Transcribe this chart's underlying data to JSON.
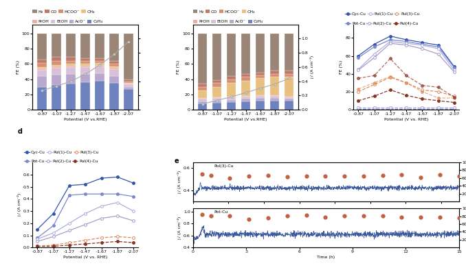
{
  "potentials": [
    -0.87,
    -1.07,
    -1.27,
    -1.47,
    -1.67,
    -1.87,
    -2.07
  ],
  "panel_a": {
    "C2H4": [
      30,
      32,
      34,
      36,
      38,
      35,
      27
    ],
    "AcO": [
      14,
      14,
      13,
      11,
      10,
      9,
      3
    ],
    "EtOH": [
      8,
      9,
      9,
      9,
      9,
      9,
      3
    ],
    "PrOH": [
      2,
      2,
      2,
      2,
      2,
      2,
      1
    ],
    "CH4": [
      2,
      2,
      2,
      2,
      2,
      2,
      1
    ],
    "HCOO": [
      5,
      5,
      4,
      4,
      3,
      3,
      2
    ],
    "CO": [
      5,
      5,
      5,
      4,
      4,
      4,
      3
    ],
    "H2": [
      34,
      31,
      31,
      32,
      32,
      36,
      60
    ],
    "current": [
      0.27,
      0.33,
      0.4,
      0.5,
      0.63,
      0.78,
      0.96
    ]
  },
  "panel_b": {
    "C2H4": [
      8,
      9,
      10,
      11,
      12,
      12,
      12
    ],
    "AcO": [
      3,
      3,
      3,
      3,
      3,
      3,
      2
    ],
    "EtOH": [
      3,
      3,
      3,
      3,
      3,
      3,
      2
    ],
    "PrOH": [
      1,
      1,
      1,
      1,
      1,
      1,
      1
    ],
    "CH4": [
      10,
      14,
      18,
      20,
      22,
      24,
      26
    ],
    "HCOO": [
      5,
      5,
      5,
      5,
      4,
      4,
      4
    ],
    "CO": [
      4,
      4,
      4,
      4,
      4,
      4,
      4
    ],
    "H2": [
      66,
      61,
      56,
      53,
      51,
      49,
      49
    ],
    "current": [
      0.08,
      0.13,
      0.18,
      0.24,
      0.3,
      0.36,
      0.44
    ]
  },
  "panel_c": {
    "CycCu_C2": [
      60,
      73,
      82,
      78,
      75,
      72,
      48
    ],
    "PotCu_C2": [
      58,
      70,
      78,
      76,
      73,
      70,
      47
    ],
    "Pul1Cu_C2": [
      45,
      62,
      76,
      74,
      72,
      68,
      44
    ],
    "Pul2Cu_C2": [
      44,
      58,
      74,
      72,
      68,
      62,
      42
    ],
    "Pul3Cu_C2": [
      20,
      28,
      36,
      30,
      22,
      20,
      15
    ],
    "Pul4Cu_C2": [
      10,
      15,
      22,
      16,
      12,
      10,
      8
    ],
    "CycCu_CH4": [
      1,
      1,
      1,
      1,
      1,
      1,
      1
    ],
    "PotCu_CH4": [
      1,
      1,
      1,
      1,
      1,
      1,
      1
    ],
    "Pul1Cu_CH4": [
      2,
      2,
      2,
      2,
      2,
      2,
      2
    ],
    "Pul2Cu_CH4": [
      2,
      2,
      2,
      2,
      2,
      2,
      2
    ],
    "Pul3Cu_CH4": [
      23,
      30,
      37,
      30,
      20,
      13,
      13
    ],
    "Pul4Cu_CH4": [
      35,
      38,
      57,
      38,
      27,
      25,
      14
    ]
  },
  "panel_d": {
    "CycCu": [
      0.15,
      0.28,
      0.51,
      0.52,
      0.57,
      0.58,
      0.53
    ],
    "PotCu": [
      0.08,
      0.18,
      0.43,
      0.44,
      0.44,
      0.44,
      0.42
    ],
    "Pul1Cu": [
      0.07,
      0.12,
      0.2,
      0.28,
      0.34,
      0.37,
      0.3
    ],
    "Pul2Cu": [
      0.05,
      0.09,
      0.14,
      0.19,
      0.24,
      0.26,
      0.22
    ],
    "Pul3Cu": [
      0.01,
      0.02,
      0.04,
      0.06,
      0.08,
      0.09,
      0.08
    ],
    "Pul4Cu": [
      0.01,
      0.01,
      0.02,
      0.03,
      0.04,
      0.05,
      0.04
    ]
  },
  "colors": {
    "H2": "#9b8577",
    "CO": "#c07868",
    "HCOO": "#d49070",
    "CH4": "#e8c080",
    "PrOH": "#f0b0a0",
    "EtOH": "#d8c0d8",
    "AcO": "#b8a8ce",
    "C2H4": "#6e82c0",
    "CycCu_blue": "#3355aa",
    "PotCu_blue": "#7788cc",
    "Pul1Cu_blue": "#aab0dd",
    "Pul2Cu_blue": "#aa99cc",
    "Pul3Cu_orange": "#e08858",
    "Pul4Cu_dark": "#883322",
    "current_line": "#aaaaaa"
  }
}
